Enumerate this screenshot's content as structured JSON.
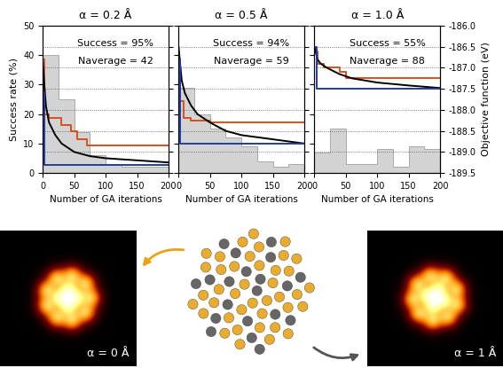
{
  "chart_data": [
    {
      "type": "histogram",
      "title": "α = 0.2 Å",
      "xlabel": "Number of GA iterations",
      "ylabel": "Success rate (%)",
      "bins": [
        0,
        25,
        50,
        75,
        100,
        125,
        150,
        175,
        200
      ],
      "counts": [
        40,
        25,
        14,
        6,
        3,
        2,
        2,
        2
      ],
      "color": "#d3d3d3",
      "xlim": [
        0,
        200
      ],
      "xticks": [
        0,
        50,
        100,
        150,
        200
      ],
      "ylim": [
        0,
        50
      ],
      "yticks": [
        0,
        10,
        20,
        30,
        40,
        50
      ],
      "y2lim": [
        -189.5,
        -186.0
      ],
      "y2ticks": [
        -189.5,
        -189.0,
        -188.5,
        -188.0,
        -187.5,
        -187.0,
        -186.5,
        -186.0
      ],
      "grid": true,
      "annotations": [
        "Success = 95%",
        "Naverage = 42"
      ],
      "series": [
        {
          "axis": "y2",
          "type": "line",
          "line_style": "steps",
          "color": "#d9501e",
          "x": [
            0,
            3,
            10,
            30,
            45,
            55,
            70,
            200
          ],
          "values": [
            -186.8,
            -188.1,
            -188.2,
            -188.35,
            -188.5,
            -188.7,
            -188.85,
            -188.85
          ]
        },
        {
          "axis": "y2",
          "type": "line",
          "line_style": "solid",
          "color": "#000000",
          "x": [
            0,
            5,
            10,
            20,
            30,
            50,
            75,
            100,
            150,
            200
          ],
          "values": [
            -186.9,
            -187.9,
            -188.3,
            -188.6,
            -188.8,
            -189.0,
            -189.1,
            -189.15,
            -189.2,
            -189.25
          ]
        },
        {
          "axis": "y2",
          "type": "line",
          "line_style": "steps",
          "color": "#1f3fa0",
          "x": [
            0,
            3,
            200
          ],
          "values": [
            -187.6,
            -189.3,
            -189.3
          ]
        }
      ]
    },
    {
      "type": "histogram",
      "title": "α = 0.5 Å",
      "xlabel": "Number of GA iterations",
      "bins": [
        0,
        25,
        50,
        75,
        100,
        125,
        150,
        175,
        200
      ],
      "counts": [
        29,
        20,
        15,
        12,
        9,
        4,
        2,
        3
      ],
      "color": "#d3d3d3",
      "xlim": [
        0,
        200
      ],
      "xticks": [
        0,
        50,
        100,
        150,
        200
      ],
      "ylim": [
        0,
        50
      ],
      "yticks": [
        0,
        10,
        20,
        30,
        40,
        50
      ],
      "y2lim": [
        -189.5,
        -186.0
      ],
      "y2ticks": [
        -189.5,
        -189.0,
        -188.5,
        -188.0,
        -187.5,
        -187.0,
        -186.5,
        -186.0
      ],
      "grid": true,
      "tick_labels": "x",
      "annotations": [
        "Success = 94%",
        "Naverage = 59"
      ],
      "series": [
        {
          "axis": "y2",
          "type": "line",
          "line_style": "steps",
          "color": "#d9501e",
          "x": [
            0,
            3,
            8,
            20,
            50,
            200
          ],
          "values": [
            -187.0,
            -187.8,
            -188.2,
            -188.25,
            -188.3,
            -188.3
          ]
        },
        {
          "axis": "y2",
          "type": "line",
          "line_style": "solid",
          "color": "#000000",
          "x": [
            0,
            5,
            10,
            20,
            30,
            50,
            75,
            100,
            150,
            200
          ],
          "values": [
            -186.5,
            -187.3,
            -187.6,
            -187.9,
            -188.1,
            -188.3,
            -188.5,
            -188.6,
            -188.7,
            -188.8
          ]
        },
        {
          "axis": "y2",
          "type": "line",
          "line_style": "steps",
          "color": "#1f3fa0",
          "x": [
            0,
            3,
            200
          ],
          "values": [
            -186.8,
            -188.8,
            -188.8
          ]
        }
      ]
    },
    {
      "type": "histogram",
      "title": "α = 1.0 Å",
      "xlabel": "Number of GA iterations",
      "y2label": "Objective function (eV)",
      "bins": [
        0,
        25,
        50,
        75,
        100,
        125,
        150,
        175,
        200
      ],
      "counts": [
        7,
        15,
        3,
        3,
        8,
        2,
        9,
        8
      ],
      "color": "#d3d3d3",
      "xlim": [
        0,
        200
      ],
      "xticks": [
        0,
        50,
        100,
        150,
        200
      ],
      "ylim": [
        0,
        50
      ],
      "yticks": [
        0,
        10,
        20,
        30,
        40,
        50
      ],
      "y2lim": [
        -189.5,
        -186.0
      ],
      "y2ticks": [
        -189.5,
        -189.0,
        -188.5,
        -188.0,
        -187.5,
        -187.0,
        -186.5,
        -186.0
      ],
      "grid": true,
      "tick_labels": "x",
      "annotations": [
        "Success = 55%",
        "Naverage = 88"
      ],
      "series": [
        {
          "axis": "y2",
          "type": "line",
          "line_style": "steps",
          "color": "#d9501e",
          "x": [
            0,
            5,
            15,
            40,
            50,
            200
          ],
          "values": [
            -186.6,
            -186.9,
            -187.0,
            -187.1,
            -187.25,
            -187.25
          ]
        },
        {
          "axis": "y2",
          "type": "line",
          "line_style": "solid",
          "color": "#000000",
          "x": [
            0,
            5,
            10,
            20,
            40,
            60,
            100,
            150,
            200
          ],
          "values": [
            -186.5,
            -186.8,
            -186.9,
            -187.0,
            -187.15,
            -187.25,
            -187.35,
            -187.42,
            -187.48
          ]
        },
        {
          "axis": "y2",
          "type": "line",
          "line_style": "steps",
          "color": "#1f3fa0",
          "x": [
            0,
            3,
            200
          ],
          "values": [
            -186.5,
            -187.5,
            -187.5
          ]
        }
      ]
    }
  ],
  "images": {
    "labels": [
      "α = 0 Å",
      "α = 1 Å"
    ]
  }
}
